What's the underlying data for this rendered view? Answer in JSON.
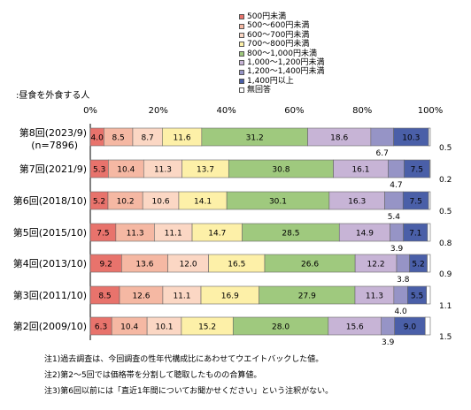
{
  "chart_data": {
    "type": "bar",
    "orientation": "horizontal",
    "stacked": true,
    "subtitle": ":昼食を外食する人",
    "x_ticks": [
      "0%",
      "20%",
      "40%",
      "60%",
      "80%",
      "100%"
    ],
    "xlim": [
      0,
      100
    ],
    "categories": [
      {
        "label": "第8回(2023/9)",
        "sub": "(n=7896)"
      },
      {
        "label": "第7回(2021/9)",
        "sub": ""
      },
      {
        "label": "第6回(2018/10)",
        "sub": ""
      },
      {
        "label": "第5回(2015/10)",
        "sub": ""
      },
      {
        "label": "第4回(2013/10)",
        "sub": ""
      },
      {
        "label": "第3回(2011/10)",
        "sub": ""
      },
      {
        "label": "第2回(2009/10)",
        "sub": ""
      }
    ],
    "series": [
      {
        "name": "500円未満",
        "color": "#e8736c",
        "values": [
          4.0,
          5.3,
          5.2,
          7.5,
          9.2,
          8.5,
          6.3
        ]
      },
      {
        "name": "500～600円未満",
        "color": "#f5b8a3",
        "values": [
          8.5,
          10.4,
          10.2,
          11.3,
          13.6,
          12.6,
          10.4
        ]
      },
      {
        "name": "600～700円未満",
        "color": "#fbd7c4",
        "values": [
          8.7,
          11.3,
          10.6,
          11.1,
          12.0,
          11.1,
          10.1
        ]
      },
      {
        "name": "700～800円未満",
        "color": "#fdf0a8",
        "values": [
          11.6,
          13.7,
          14.1,
          14.7,
          16.5,
          16.9,
          15.2
        ]
      },
      {
        "name": "800～1,000円未満",
        "color": "#9fc97e",
        "values": [
          31.2,
          30.8,
          30.1,
          28.5,
          26.6,
          27.9,
          28.0
        ]
      },
      {
        "name": "1,000～1,200円未満",
        "color": "#c7b4d6",
        "values": [
          18.6,
          16.1,
          16.3,
          14.9,
          12.2,
          11.3,
          15.6
        ]
      },
      {
        "name": "1,200～1,400円未満",
        "color": "#9694c6",
        "values": [
          6.7,
          4.7,
          5.4,
          3.9,
          3.8,
          4.0,
          3.9
        ]
      },
      {
        "name": "1,400円以上",
        "color": "#4a5fa8",
        "values": [
          10.3,
          7.5,
          7.5,
          7.1,
          5.2,
          5.5,
          9.0
        ]
      },
      {
        "name": "無回答",
        "color": "#ffffff",
        "values": [
          0.5,
          0.2,
          0.5,
          0.8,
          0.9,
          1.1,
          1.5
        ]
      }
    ],
    "labels": [
      [
        "4.0",
        "8.5",
        "8.7",
        "11.6",
        "31.2",
        "18.6",
        "6.7",
        "10.3",
        "0.5"
      ],
      [
        "5.3",
        "10.4",
        "11.3",
        "13.7",
        "30.8",
        "16.1",
        "4.7",
        "7.5",
        "0.2"
      ],
      [
        "5.2",
        "10.2",
        "10.6",
        "14.1",
        "30.1",
        "16.3",
        "5.4",
        "7.5",
        "0.5"
      ],
      [
        "7.5",
        "11.3",
        "11.1",
        "14.7",
        "28.5",
        "14.9",
        "3.9",
        "7.1",
        "0.8"
      ],
      [
        "9.2",
        "13.6",
        "12.0",
        "16.5",
        "26.6",
        "12.2",
        "3.8",
        "5.2",
        "0.9"
      ],
      [
        "8.5",
        "12.6",
        "11.1",
        "16.9",
        "27.9",
        "11.3",
        "4.0",
        "5.5",
        "1.1"
      ],
      [
        "6.3",
        "10.4",
        "10.1",
        "15.2",
        "28.0",
        "15.6",
        "3.9",
        "9.0",
        "1.5"
      ]
    ],
    "legend_position": "top-right",
    "grid": false
  },
  "notes": [
    "注1)過去調査は、今回調査の性年代構成比にあわせてウエイトバックした値。",
    "注2)第2～5回では価格帯を分割して聴取したものの合算値。",
    "注3)第6回以前には「直近1年間についてお聞かせください」という注釈がない。"
  ]
}
